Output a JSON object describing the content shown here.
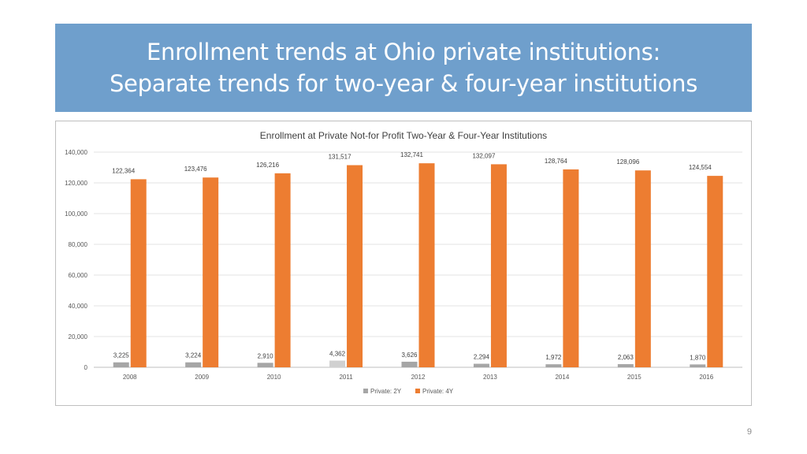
{
  "slide": {
    "title_line1": "Enrollment trends at Ohio private institutions:",
    "title_line2": "Separate trends for two-year & four-year institutions",
    "page_number": "9"
  },
  "chart_data": {
    "type": "bar",
    "title": "Enrollment at Private Not-for Profit Two-Year & Four-Year Institutions",
    "categories": [
      "2008",
      "2009",
      "2010",
      "2011",
      "2012",
      "2013",
      "2014",
      "2015",
      "2016"
    ],
    "series": [
      {
        "name": "Private: 2Y",
        "color": "#a6a6a6",
        "values": [
          3225,
          3224,
          2910,
          4362,
          3626,
          2294,
          1972,
          2063,
          1870
        ],
        "labels": [
          "3,225",
          "3,224",
          "2,910",
          "4,362",
          "3,626",
          "2,294",
          "1,972",
          "2,063",
          "1,870"
        ],
        "highlight_color": "#d0d0d0",
        "highlight_index": 3
      },
      {
        "name": "Private: 4Y",
        "color": "#ed7d31",
        "values": [
          122364,
          123476,
          126216,
          131517,
          132741,
          132097,
          128764,
          128096,
          124554
        ],
        "labels": [
          "122,364",
          "123,476",
          "126,216",
          "131,517",
          "132,741",
          "132,097",
          "128,764",
          "128,096",
          "124,554"
        ]
      }
    ],
    "ylim": [
      0,
      140000
    ],
    "yticks": [
      0,
      20000,
      40000,
      60000,
      80000,
      100000,
      120000,
      140000
    ],
    "ytick_labels": [
      "0",
      "20,000",
      "40,000",
      "60,000",
      "80,000",
      "100,000",
      "120,000",
      "140,000"
    ],
    "grid": true,
    "legend_position": "bottom"
  }
}
